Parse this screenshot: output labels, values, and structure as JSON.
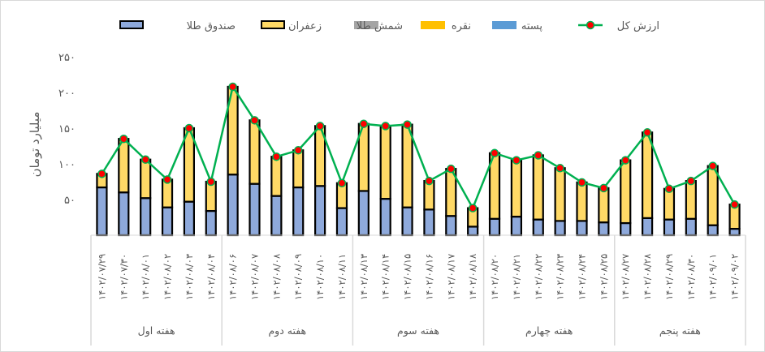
{
  "chart_data": {
    "type": "bar",
    "stacked": true,
    "ylabel": "میلیارد تومان",
    "ylim": [
      0,
      250
    ],
    "yticks": [
      "۵۰",
      "۱۰۰",
      "۱۵۰",
      "۲۰۰",
      "۲۵۰"
    ],
    "ytick_values": [
      50,
      100,
      150,
      200,
      250
    ],
    "grid": false,
    "legend_position": "top",
    "legend": [
      {
        "name": "صندوق طلا",
        "kind": "bar",
        "color": "#8EA9DB"
      },
      {
        "name": "زعفران",
        "kind": "bar",
        "color": "#FFD966"
      },
      {
        "name": "شمش طلا",
        "kind": "bar",
        "color": "#A5A5A5"
      },
      {
        "name": "نقره",
        "kind": "bar",
        "color": "#FFC000"
      },
      {
        "name": "پسته",
        "kind": "bar",
        "color": "#5B9BD5"
      },
      {
        "name": "ارزش کل",
        "kind": "line",
        "color": "#00B050",
        "marker_color": "#FF0000"
      }
    ],
    "categories": [
      "۱۴۰۲/۰۷/۲۹",
      "۱۴۰۲/۰۷/۳۰",
      "۱۴۰۲/۰۸/۰۱",
      "۱۴۰۲/۰۸/۰۲",
      "۱۴۰۲/۰۸/۰۳",
      "۱۴۰۲/۰۸/۰۴",
      "۱۴۰۲/۰۸/۰۶",
      "۱۴۰۲/۰۸/۰۷",
      "۱۴۰۲/۰۸/۰۸",
      "۱۴۰۲/۰۸/۰۹",
      "۱۴۰۲/۰۸/۱۰",
      "۱۴۰۲/۰۸/۱۱",
      "۱۴۰۲/۰۸/۱۳",
      "۱۴۰۲/۰۸/۱۴",
      "۱۴۰۲/۰۸/۱۵",
      "۱۴۰۲/۰۸/۱۶",
      "۱۴۰۲/۰۸/۱۷",
      "۱۴۰۲/۰۸/۱۸",
      "۱۴۰۲/۰۸/۲۰",
      "۱۴۰۲/۰۸/۲۱",
      "۱۴۰۲/۰۸/۲۲",
      "۱۴۰۲/۰۸/۲۳",
      "۱۴۰۲/۰۸/۲۴",
      "۱۴۰۲/۰۸/۲۵",
      "۱۴۰۲/۰۸/۲۷",
      "۱۴۰۲/۰۸/۲۸",
      "۱۴۰۲/۰۸/۲۹",
      "۱۴۰۲/۰۸/۳۰",
      "۱۴۰۲/۰۹/۰۱",
      "۱۴۰۲/۰۹/۰۲"
    ],
    "groups": [
      {
        "label": "هفته اول",
        "count": 6
      },
      {
        "label": "هفته دوم",
        "count": 6
      },
      {
        "label": "هفته سوم",
        "count": 6
      },
      {
        "label": "هفته چهارم",
        "count": 6
      },
      {
        "label": "هفته پنجم",
        "count": 6
      }
    ],
    "series": [
      {
        "name": "صندوق طلا",
        "values": [
          67,
          60,
          52,
          39,
          47,
          34,
          85,
          72,
          55,
          67,
          69,
          38,
          62,
          51,
          39,
          36,
          27,
          12,
          23,
          26,
          22,
          20,
          20,
          18,
          17,
          24,
          22,
          23,
          14,
          9
        ]
      },
      {
        "name": "زعفران",
        "values": [
          19,
          75,
          54,
          39,
          103,
          41,
          123,
          89,
          55,
          52,
          84,
          35,
          94,
          102,
          116,
          40,
          66,
          26,
          92,
          79,
          90,
          74,
          54,
          48,
          88,
          120,
          43,
          53,
          83,
          34
        ]
      },
      {
        "name": "شمش طلا",
        "values": [
          0,
          0,
          0,
          0,
          0,
          0,
          0,
          0,
          0,
          0,
          0,
          0,
          0,
          0,
          0,
          0,
          0,
          0,
          0,
          0,
          0,
          0,
          0,
          0,
          0,
          0,
          0,
          0,
          0,
          0
        ]
      },
      {
        "name": "نقره",
        "values": [
          0,
          0,
          0,
          0,
          0,
          0,
          0,
          0,
          0,
          0,
          0,
          0,
          0,
          0,
          0,
          0,
          0,
          0,
          0,
          0,
          0,
          0,
          0,
          0,
          0,
          0,
          0,
          0,
          0,
          0
        ]
      },
      {
        "name": "پسته",
        "values": [
          0,
          0,
          0,
          0,
          0,
          0,
          0,
          0,
          0,
          0,
          0,
          0,
          0,
          0,
          0,
          0,
          0,
          0,
          0,
          0,
          0,
          0,
          0,
          0,
          0,
          0,
          0,
          0,
          0,
          0
        ]
      },
      {
        "name": "ارزش کل",
        "type": "line",
        "values": [
          86,
          135,
          106,
          78,
          150,
          75,
          208,
          161,
          110,
          119,
          153,
          73,
          156,
          153,
          155,
          76,
          93,
          38,
          115,
          105,
          112,
          94,
          74,
          66,
          105,
          144,
          65,
          76,
          97,
          43
        ]
      }
    ]
  }
}
